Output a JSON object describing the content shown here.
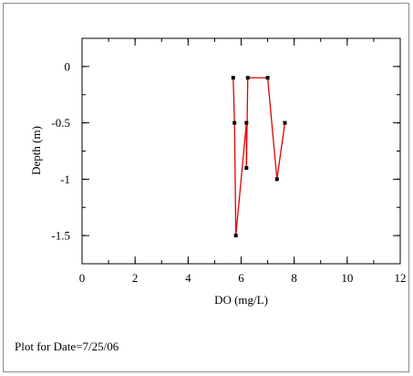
{
  "chart_data": {
    "type": "line",
    "xlabel": "DO (mg/L)",
    "ylabel": "Depth (m)",
    "xlim": [
      0,
      12
    ],
    "ylim": [
      -1.75,
      0.25
    ],
    "x_ticks": [
      0,
      2,
      4,
      6,
      8,
      10,
      12
    ],
    "x_tick_labels": [
      "0",
      "2",
      "4",
      "6",
      "8",
      "10",
      "12"
    ],
    "x_minor_step": 1,
    "y_ticks": [
      0,
      -0.5,
      -1,
      -1.5
    ],
    "y_tick_labels": [
      "0",
      "-0.5",
      "-1",
      "-1.5"
    ],
    "y_minor_step": 0.25,
    "grid": false,
    "series": [
      {
        "color": "#e00000",
        "marker_color": "#000000",
        "points": [
          {
            "x": 5.7,
            "y": -0.1
          },
          {
            "x": 5.75,
            "y": -0.5
          },
          {
            "x": 5.8,
            "y": -1.5
          },
          {
            "x": 6.2,
            "y": -0.5
          },
          {
            "x": 6.2,
            "y": -0.9
          },
          {
            "x": 6.25,
            "y": -0.1
          },
          {
            "x": 7.0,
            "y": -0.1
          },
          {
            "x": 7.35,
            "y": -1.0
          },
          {
            "x": 7.65,
            "y": -0.5
          }
        ]
      }
    ]
  },
  "caption": "Plot for Date=7/25/06"
}
